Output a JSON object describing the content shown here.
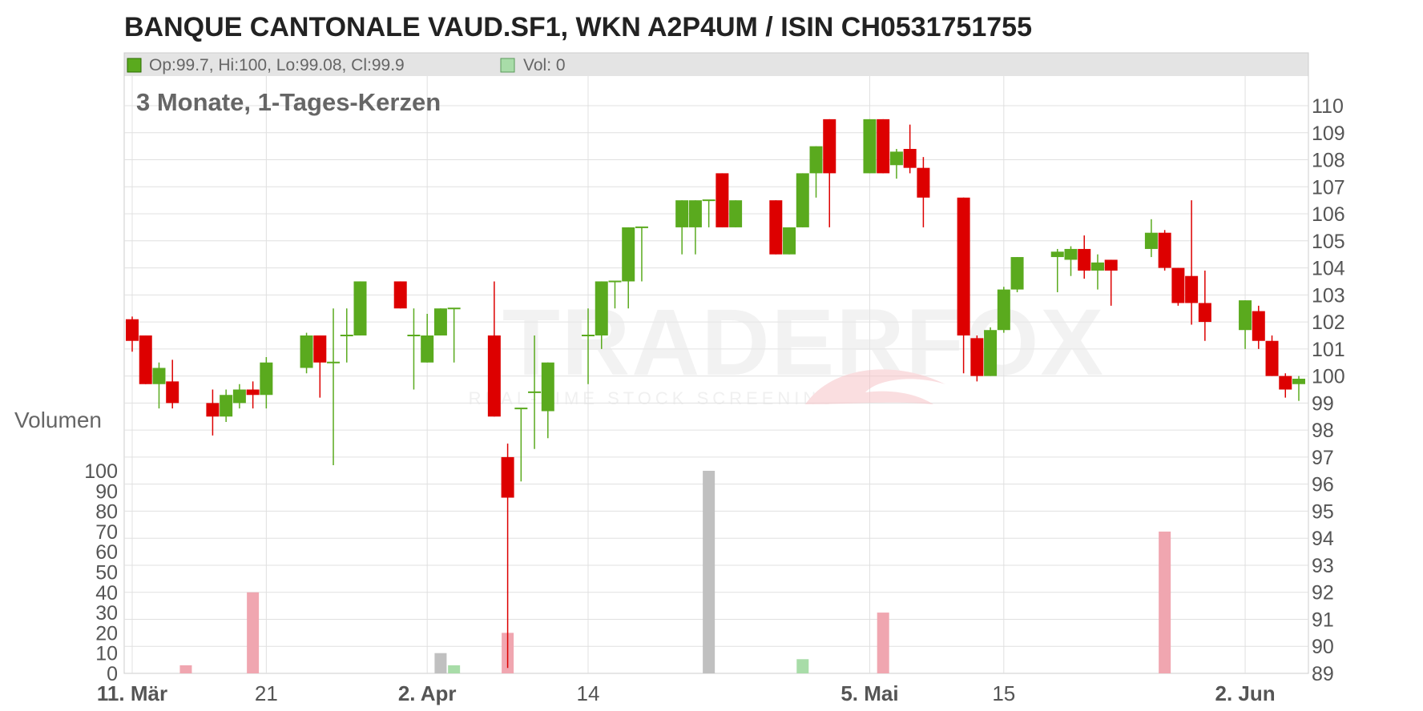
{
  "title": "BANQUE CANTONALE VAUD.SF1, WKN A2P4UM / ISIN CH0531751755",
  "subtitle": "3 Monate, 1-Tages-Kerzen",
  "legend": {
    "ohlc": "Op:99.7, Hi:100, Lo:99.08, Cl:99.9",
    "vol": "Vol: 0"
  },
  "volume_label": "Volumen",
  "watermark": {
    "main": "TRADERFOX",
    "tagline": "REAL-TIME STOCK SCREENING"
  },
  "colors": {
    "up": "#5aaa1e",
    "down": "#dd0000",
    "wick_up": "#5aaa1e",
    "wick_down": "#dd0000",
    "vol_up": "#a8dca8",
    "vol_down": "#f0a6b0",
    "vol_neutral": "#c0c0c0",
    "grid": "#e0e0e0",
    "legend_bg": "#e4e4e4"
  },
  "chart_data": {
    "type": "candlestick",
    "price_axis": {
      "min": 89,
      "max": 110,
      "ticks": [
        89,
        90,
        91,
        92,
        93,
        94,
        95,
        96,
        97,
        98,
        99,
        100,
        101,
        102,
        103,
        104,
        105,
        106,
        107,
        108,
        109,
        110
      ]
    },
    "volume_axis": {
      "min": 0,
      "max": 100,
      "ticks": [
        0,
        10,
        20,
        30,
        40,
        50,
        60,
        70,
        80,
        90,
        100
      ]
    },
    "x_labels": [
      {
        "label": "11. Mär",
        "day": 0,
        "bold": true
      },
      {
        "label": "21",
        "day": 10,
        "bold": false
      },
      {
        "label": "2. Apr",
        "day": 22,
        "bold": true
      },
      {
        "label": "14",
        "day": 34,
        "bold": false
      },
      {
        "label": "5. Mai",
        "day": 55,
        "bold": true
      },
      {
        "label": "15",
        "day": 65,
        "bold": false
      },
      {
        "label": "2. Jun",
        "day": 83,
        "bold": true
      }
    ],
    "x_day_range": [
      0,
      87
    ],
    "candles": [
      {
        "day": 0,
        "o": 102.1,
        "h": 102.2,
        "l": 100.9,
        "c": 101.3
      },
      {
        "day": 1,
        "o": 101.5,
        "h": 101.5,
        "l": 99.7,
        "c": 99.7
      },
      {
        "day": 2,
        "o": 99.7,
        "h": 100.5,
        "l": 98.8,
        "c": 100.3
      },
      {
        "day": 3,
        "o": 99.8,
        "h": 100.6,
        "l": 98.8,
        "c": 99.0
      },
      {
        "day": 6,
        "o": 99.0,
        "h": 99.5,
        "l": 97.8,
        "c": 98.5
      },
      {
        "day": 7,
        "o": 98.5,
        "h": 99.5,
        "l": 98.3,
        "c": 99.3
      },
      {
        "day": 8,
        "o": 99.0,
        "h": 99.7,
        "l": 98.8,
        "c": 99.5
      },
      {
        "day": 9,
        "o": 99.5,
        "h": 99.8,
        "l": 98.8,
        "c": 99.3,
        "vol": 40
      },
      {
        "day": 10,
        "o": 99.3,
        "h": 100.7,
        "l": 98.8,
        "c": 100.5
      },
      {
        "day": 13,
        "o": 100.3,
        "h": 101.6,
        "l": 100.1,
        "c": 101.5
      },
      {
        "day": 14,
        "o": 101.5,
        "h": 101.5,
        "l": 99.2,
        "c": 100.5
      },
      {
        "day": 15,
        "o": 100.5,
        "h": 102.5,
        "l": 96.7,
        "c": 100.5
      },
      {
        "day": 16,
        "o": 101.5,
        "h": 102.5,
        "l": 100.5,
        "c": 101.5
      },
      {
        "day": 17,
        "o": 101.5,
        "h": 103.5,
        "l": 101.5,
        "c": 103.5
      },
      {
        "day": 20,
        "o": 103.5,
        "h": 103.5,
        "l": 102.5,
        "c": 102.5
      },
      {
        "day": 21,
        "o": 101.5,
        "h": 102.5,
        "l": 99.5,
        "c": 101.5
      },
      {
        "day": 22,
        "o": 100.5,
        "h": 102.3,
        "l": 100.5,
        "c": 101.5
      },
      {
        "day": 23,
        "o": 101.5,
        "h": 102.5,
        "l": 101.5,
        "c": 102.5,
        "vol": 10
      },
      {
        "day": 24,
        "o": 102.5,
        "h": 102.5,
        "l": 100.5,
        "c": 102.5,
        "vol": 4
      },
      {
        "day": 27,
        "o": 101.5,
        "h": 103.5,
        "l": 98.5,
        "c": 98.5
      },
      {
        "day": 28,
        "o": 97.0,
        "h": 97.5,
        "l": 89.2,
        "c": 95.5,
        "vol": 20
      },
      {
        "day": 29,
        "o": 98.8,
        "h": 98.8,
        "l": 96.1,
        "c": 98.8
      },
      {
        "day": 30,
        "o": 99.4,
        "h": 101.5,
        "l": 97.3,
        "c": 99.4
      },
      {
        "day": 31,
        "o": 98.7,
        "h": 100.5,
        "l": 97.7,
        "c": 100.5
      },
      {
        "day": 34,
        "o": 101.5,
        "h": 102.5,
        "l": 99.7,
        "c": 101.5
      },
      {
        "day": 35,
        "o": 101.5,
        "h": 103.5,
        "l": 101.0,
        "c": 103.5
      },
      {
        "day": 36,
        "o": 103.5,
        "h": 103.5,
        "l": 102.5,
        "c": 103.5
      },
      {
        "day": 37,
        "o": 103.5,
        "h": 105.5,
        "l": 102.5,
        "c": 105.5
      },
      {
        "day": 38,
        "o": 105.5,
        "h": 105.5,
        "l": 103.5,
        "c": 105.5
      },
      {
        "day": 41,
        "o": 105.5,
        "h": 106.5,
        "l": 104.5,
        "c": 106.5
      },
      {
        "day": 42,
        "o": 105.5,
        "h": 106.5,
        "l": 104.5,
        "c": 106.5
      },
      {
        "day": 43,
        "o": 106.5,
        "h": 106.5,
        "l": 105.5,
        "c": 106.5,
        "vol": 100
      },
      {
        "day": 44,
        "o": 107.5,
        "h": 107.5,
        "l": 105.5,
        "c": 105.5
      },
      {
        "day": 45,
        "o": 105.5,
        "h": 106.5,
        "l": 105.5,
        "c": 106.5
      },
      {
        "day": 48,
        "o": 106.5,
        "h": 106.5,
        "l": 104.5,
        "c": 104.5
      },
      {
        "day": 49,
        "o": 104.5,
        "h": 105.5,
        "l": 104.5,
        "c": 105.5
      },
      {
        "day": 50,
        "o": 105.5,
        "h": 107.5,
        "l": 105.5,
        "c": 107.5,
        "vol": 7
      },
      {
        "day": 51,
        "o": 107.5,
        "h": 108.5,
        "l": 106.6,
        "c": 108.5
      },
      {
        "day": 52,
        "o": 109.5,
        "h": 109.5,
        "l": 105.5,
        "c": 107.5
      },
      {
        "day": 55,
        "o": 107.5,
        "h": 109.5,
        "l": 107.5,
        "c": 109.5
      },
      {
        "day": 56,
        "o": 109.5,
        "h": 109.5,
        "l": 107.5,
        "c": 107.5,
        "vol": 30
      },
      {
        "day": 57,
        "o": 107.8,
        "h": 108.4,
        "l": 107.3,
        "c": 108.3
      },
      {
        "day": 58,
        "o": 108.4,
        "h": 109.3,
        "l": 107.5,
        "c": 107.7
      },
      {
        "day": 59,
        "o": 107.7,
        "h": 108.1,
        "l": 105.5,
        "c": 106.6
      },
      {
        "day": 62,
        "o": 106.6,
        "h": 106.6,
        "l": 100.1,
        "c": 101.5
      },
      {
        "day": 63,
        "o": 101.4,
        "h": 101.5,
        "l": 99.8,
        "c": 100.0
      },
      {
        "day": 64,
        "o": 100.0,
        "h": 101.8,
        "l": 100.0,
        "c": 101.7
      },
      {
        "day": 65,
        "o": 101.7,
        "h": 103.3,
        "l": 101.6,
        "c": 103.2
      },
      {
        "day": 66,
        "o": 103.2,
        "h": 104.4,
        "l": 103.1,
        "c": 104.4
      },
      {
        "day": 69,
        "o": 104.4,
        "h": 104.7,
        "l": 103.1,
        "c": 104.6
      },
      {
        "day": 70,
        "o": 104.3,
        "h": 104.8,
        "l": 103.7,
        "c": 104.7
      },
      {
        "day": 71,
        "o": 104.7,
        "h": 105.2,
        "l": 103.6,
        "c": 103.9
      },
      {
        "day": 72,
        "o": 103.9,
        "h": 104.5,
        "l": 103.2,
        "c": 104.2
      },
      {
        "day": 73,
        "o": 104.3,
        "h": 104.3,
        "l": 102.6,
        "c": 103.9
      },
      {
        "day": 76,
        "o": 104.7,
        "h": 105.8,
        "l": 104.4,
        "c": 105.3
      },
      {
        "day": 77,
        "o": 105.3,
        "h": 105.4,
        "l": 103.9,
        "c": 104.0,
        "vol": 70
      },
      {
        "day": 78,
        "o": 104.0,
        "h": 104.0,
        "l": 102.6,
        "c": 102.7
      },
      {
        "day": 79,
        "o": 103.7,
        "h": 106.5,
        "l": 101.9,
        "c": 102.7
      },
      {
        "day": 80,
        "o": 102.7,
        "h": 103.9,
        "l": 101.3,
        "c": 102.0
      },
      {
        "day": 83,
        "o": 101.7,
        "h": 102.8,
        "l": 101.0,
        "c": 102.8
      },
      {
        "day": 84,
        "o": 102.4,
        "h": 102.6,
        "l": 101.0,
        "c": 101.3
      },
      {
        "day": 85,
        "o": 101.3,
        "h": 101.5,
        "l": 100.0,
        "c": 100.0
      },
      {
        "day": 86,
        "o": 100.0,
        "h": 100.1,
        "l": 99.2,
        "c": 99.5
      },
      {
        "day": 87,
        "o": 99.7,
        "h": 100.0,
        "l": 99.08,
        "c": 99.9,
        "vol": 0
      }
    ],
    "extra_volumes": [
      {
        "day": 4,
        "vol": 4,
        "dir": "down"
      }
    ]
  }
}
